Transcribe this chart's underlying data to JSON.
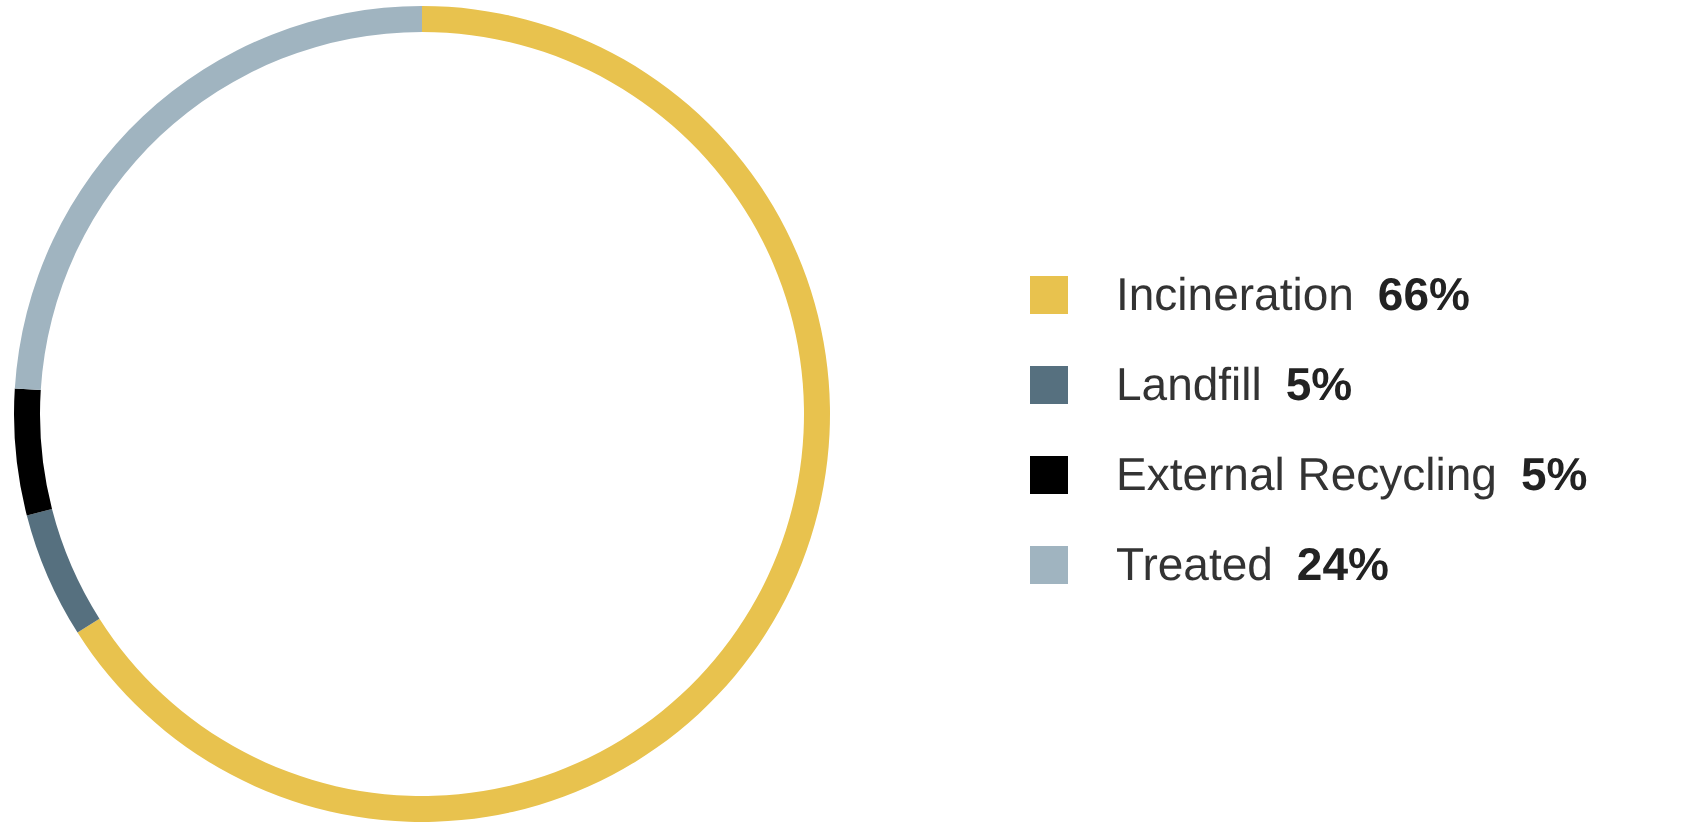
{
  "chart_data": {
    "type": "donut",
    "categories": [
      "Incineration",
      "Landfill",
      "External Recycling",
      "Treated"
    ],
    "values": [
      66,
      5,
      5,
      24
    ],
    "colors": [
      "#e8c24e",
      "#56707f",
      "#000000",
      "#a0b4c0"
    ],
    "value_labels": [
      "66%",
      "5%",
      "5%",
      "24%"
    ],
    "legend": "right"
  }
}
